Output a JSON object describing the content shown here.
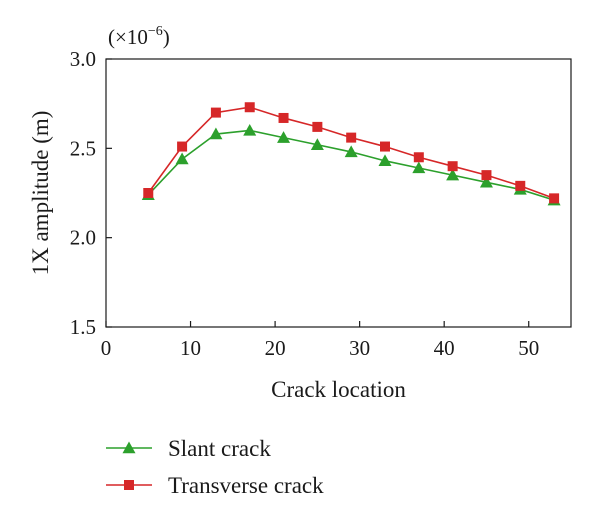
{
  "chart_data": {
    "type": "line",
    "title": "",
    "xlabel": "Crack location",
    "ylabel": "1X amplitude (m)",
    "y_multiplier": {
      "prefix": "(×10",
      "exponent": "−6",
      "suffix": ")"
    },
    "xlim": [
      0,
      55
    ],
    "ylim": [
      1.5,
      3.0
    ],
    "x_ticks": [
      0,
      10,
      20,
      30,
      40,
      50
    ],
    "x_tick_labels": [
      "0",
      "10",
      "20",
      "30",
      "40",
      "50"
    ],
    "y_ticks": [
      1.5,
      2.0,
      2.5,
      3.0
    ],
    "y_tick_labels": [
      "1.5",
      "2.0",
      "2.5",
      "3.0"
    ],
    "grid": false,
    "legend_position": "bottom",
    "x": [
      5,
      9,
      13,
      17,
      21,
      25,
      29,
      33,
      37,
      41,
      45,
      49,
      53
    ],
    "series": [
      {
        "name": "Slant crack",
        "color": "#2ca02c",
        "marker": "triangle",
        "values": [
          2.24,
          2.44,
          2.58,
          2.6,
          2.56,
          2.52,
          2.48,
          2.43,
          2.39,
          2.35,
          2.31,
          2.27,
          2.21
        ]
      },
      {
        "name": "Transverse crack",
        "color": "#d62728",
        "marker": "square",
        "values": [
          2.25,
          2.51,
          2.7,
          2.73,
          2.67,
          2.62,
          2.56,
          2.51,
          2.45,
          2.4,
          2.35,
          2.29,
          2.22
        ]
      }
    ]
  }
}
